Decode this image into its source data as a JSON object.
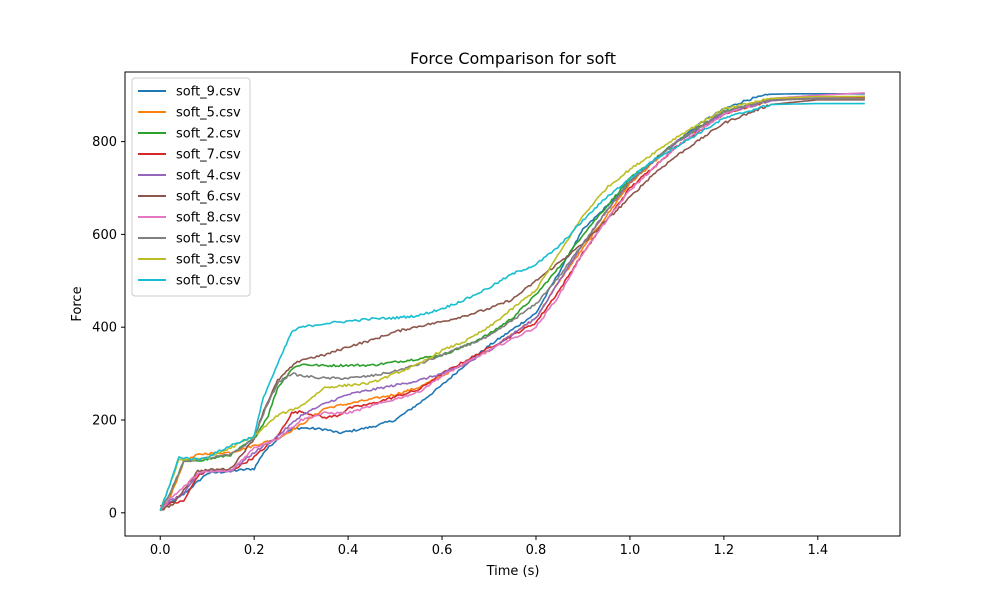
{
  "chart_data": {
    "type": "line",
    "title": "Force Comparison for soft",
    "xlabel": "Time (s)",
    "ylabel": "Force",
    "xlim": [
      -0.075,
      1.575
    ],
    "ylim": [
      -50,
      950
    ],
    "xticks": [
      0.0,
      0.2,
      0.4,
      0.6,
      0.8,
      1.0,
      1.2,
      1.4
    ],
    "xtick_labels": [
      "0.0",
      "0.2",
      "0.4",
      "0.6",
      "0.8",
      "1.0",
      "1.2",
      "1.4"
    ],
    "yticks": [
      0,
      200,
      400,
      600,
      800
    ],
    "ytick_labels": [
      "0",
      "200",
      "400",
      "600",
      "800"
    ],
    "grid": false,
    "legend_position": "top-left",
    "series": [
      {
        "name": "soft_9.csv",
        "color": "#1f77b4",
        "x": [
          0.0,
          0.02,
          0.05,
          0.1,
          0.15,
          0.2,
          0.22,
          0.25,
          0.28,
          0.3,
          0.35,
          0.38,
          0.4,
          0.45,
          0.5,
          0.55,
          0.6,
          0.65,
          0.7,
          0.75,
          0.8,
          0.85,
          0.9,
          0.95,
          1.0,
          1.05,
          1.1,
          1.15,
          1.2,
          1.25,
          1.3,
          1.35,
          1.4,
          1.5
        ],
        "y": [
          5,
          20,
          40,
          85,
          90,
          95,
          130,
          160,
          180,
          183,
          180,
          172,
          175,
          185,
          200,
          235,
          275,
          320,
          360,
          395,
          430,
          520,
          610,
          660,
          710,
          760,
          800,
          840,
          870,
          890,
          902,
          903,
          903,
          903
        ]
      },
      {
        "name": "soft_5.csv",
        "color": "#ff7f0e",
        "x": [
          0.0,
          0.02,
          0.05,
          0.08,
          0.1,
          0.15,
          0.2,
          0.25,
          0.3,
          0.35,
          0.4,
          0.45,
          0.5,
          0.55,
          0.6,
          0.7,
          0.8,
          0.85,
          0.9,
          0.95,
          1.0,
          1.1,
          1.2,
          1.3,
          1.4,
          1.5
        ],
        "y": [
          5,
          30,
          110,
          125,
          128,
          130,
          145,
          160,
          190,
          225,
          235,
          245,
          255,
          270,
          295,
          350,
          420,
          500,
          570,
          640,
          710,
          800,
          860,
          888,
          895,
          897
        ]
      },
      {
        "name": "soft_2.csv",
        "color": "#2ca02c",
        "x": [
          0.0,
          0.02,
          0.05,
          0.1,
          0.15,
          0.2,
          0.23,
          0.25,
          0.28,
          0.3,
          0.35,
          0.4,
          0.45,
          0.5,
          0.55,
          0.6,
          0.65,
          0.7,
          0.75,
          0.8,
          0.85,
          0.9,
          0.95,
          1.0,
          1.1,
          1.2,
          1.3,
          1.4,
          1.5
        ],
        "y": [
          5,
          40,
          110,
          115,
          125,
          160,
          210,
          270,
          310,
          320,
          317,
          318,
          318,
          325,
          332,
          340,
          360,
          385,
          420,
          470,
          530,
          600,
          660,
          720,
          800,
          865,
          890,
          895,
          895
        ]
      },
      {
        "name": "soft_7.csv",
        "color": "#d62728",
        "x": [
          0.0,
          0.02,
          0.05,
          0.08,
          0.1,
          0.15,
          0.2,
          0.25,
          0.28,
          0.3,
          0.35,
          0.38,
          0.4,
          0.45,
          0.5,
          0.55,
          0.6,
          0.7,
          0.8,
          0.85,
          0.9,
          0.95,
          1.0,
          1.1,
          1.2,
          1.3,
          1.4,
          1.5
        ],
        "y": [
          15,
          20,
          25,
          80,
          90,
          90,
          120,
          165,
          215,
          218,
          205,
          210,
          225,
          235,
          250,
          265,
          300,
          355,
          410,
          480,
          560,
          630,
          700,
          790,
          860,
          890,
          895,
          895
        ]
      },
      {
        "name": "soft_4.csv",
        "color": "#9467bd",
        "x": [
          0.0,
          0.02,
          0.05,
          0.08,
          0.1,
          0.15,
          0.2,
          0.25,
          0.3,
          0.35,
          0.4,
          0.45,
          0.5,
          0.55,
          0.6,
          0.65,
          0.7,
          0.8,
          0.85,
          0.9,
          0.95,
          1.0,
          1.1,
          1.2,
          1.3,
          1.4,
          1.5
        ],
        "y": [
          5,
          25,
          40,
          85,
          90,
          90,
          130,
          165,
          210,
          235,
          255,
          265,
          275,
          285,
          300,
          320,
          350,
          420,
          500,
          580,
          650,
          715,
          800,
          860,
          888,
          895,
          897
        ]
      },
      {
        "name": "soft_6.csv",
        "color": "#8c564b",
        "x": [
          0.0,
          0.03,
          0.05,
          0.08,
          0.1,
          0.15,
          0.2,
          0.22,
          0.25,
          0.28,
          0.3,
          0.35,
          0.4,
          0.45,
          0.5,
          0.55,
          0.6,
          0.65,
          0.7,
          0.75,
          0.8,
          0.85,
          0.9,
          0.95,
          1.0,
          1.05,
          1.1,
          1.2,
          1.3,
          1.4,
          1.5
        ],
        "y": [
          5,
          20,
          50,
          90,
          92,
          95,
          160,
          220,
          285,
          315,
          330,
          340,
          358,
          372,
          390,
          402,
          412,
          425,
          440,
          460,
          500,
          540,
          580,
          630,
          680,
          730,
          770,
          840,
          880,
          890,
          890
        ]
      },
      {
        "name": "soft_8.csv",
        "color": "#e377c2",
        "x": [
          0.0,
          0.02,
          0.05,
          0.08,
          0.1,
          0.15,
          0.2,
          0.25,
          0.3,
          0.35,
          0.4,
          0.45,
          0.5,
          0.55,
          0.6,
          0.7,
          0.8,
          0.85,
          0.9,
          0.95,
          1.0,
          1.1,
          1.2,
          1.3,
          1.4,
          1.5
        ],
        "y": [
          5,
          30,
          55,
          85,
          88,
          90,
          140,
          160,
          200,
          215,
          215,
          230,
          245,
          260,
          295,
          350,
          400,
          470,
          560,
          630,
          695,
          790,
          860,
          893,
          900,
          905
        ]
      },
      {
        "name": "soft_1.csv",
        "color": "#7f7f7f",
        "x": [
          0.0,
          0.02,
          0.05,
          0.1,
          0.15,
          0.2,
          0.22,
          0.25,
          0.28,
          0.3,
          0.35,
          0.4,
          0.45,
          0.5,
          0.55,
          0.6,
          0.7,
          0.8,
          0.85,
          0.9,
          0.95,
          1.0,
          1.1,
          1.2,
          1.3,
          1.4,
          1.5
        ],
        "y": [
          5,
          40,
          110,
          118,
          125,
          160,
          215,
          280,
          300,
          295,
          290,
          290,
          295,
          305,
          320,
          340,
          380,
          450,
          510,
          580,
          650,
          715,
          800,
          865,
          890,
          892,
          892
        ]
      },
      {
        "name": "soft_3.csv",
        "color": "#bcbd22",
        "x": [
          0.0,
          0.02,
          0.04,
          0.08,
          0.1,
          0.15,
          0.2,
          0.25,
          0.3,
          0.35,
          0.4,
          0.45,
          0.5,
          0.55,
          0.6,
          0.65,
          0.7,
          0.75,
          0.8,
          0.85,
          0.9,
          0.95,
          1.0,
          1.1,
          1.2,
          1.3,
          1.4,
          1.5
        ],
        "y": [
          5,
          60,
          115,
          115,
          118,
          140,
          165,
          210,
          230,
          270,
          275,
          280,
          300,
          320,
          350,
          370,
          400,
          440,
          480,
          560,
          640,
          700,
          740,
          810,
          870,
          893,
          897,
          897
        ]
      },
      {
        "name": "soft_0.csv",
        "color": "#17becf",
        "x": [
          0.0,
          0.02,
          0.04,
          0.08,
          0.1,
          0.15,
          0.2,
          0.22,
          0.25,
          0.28,
          0.3,
          0.35,
          0.4,
          0.45,
          0.5,
          0.55,
          0.6,
          0.65,
          0.7,
          0.75,
          0.8,
          0.85,
          0.9,
          0.95,
          1.0,
          1.05,
          1.1,
          1.2,
          1.3,
          1.4,
          1.5
        ],
        "y": [
          5,
          60,
          120,
          115,
          120,
          145,
          165,
          250,
          320,
          390,
          400,
          408,
          413,
          418,
          420,
          425,
          440,
          460,
          485,
          515,
          535,
          575,
          630,
          680,
          720,
          760,
          790,
          850,
          880,
          882,
          882
        ]
      }
    ]
  }
}
